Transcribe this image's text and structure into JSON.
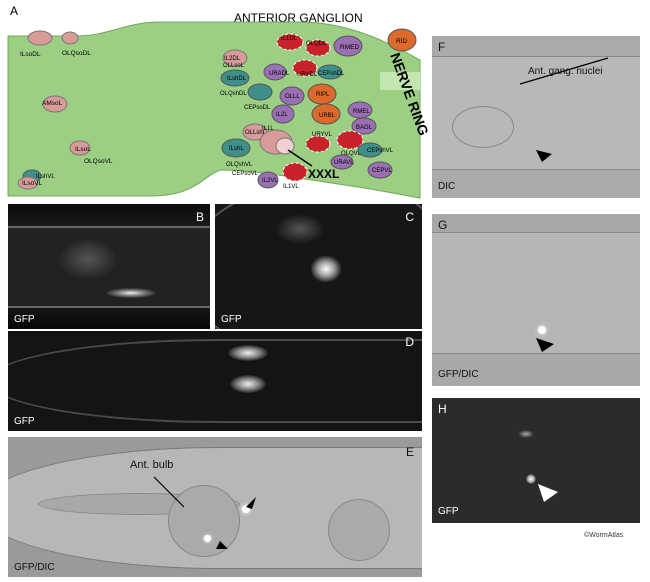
{
  "panels": {
    "a": {
      "letter": "A",
      "title": "ANTERIOR GANGLION",
      "ring_label": "NERVE RING",
      "xxxl_label": "XXXL"
    },
    "b": {
      "letter": "B",
      "caption": "GFP"
    },
    "c": {
      "letter": "C",
      "caption": "GFP"
    },
    "d": {
      "letter": "D",
      "caption": "GFP"
    },
    "e": {
      "letter": "E",
      "caption": "GFP/DIC",
      "annotation": "Ant. bulb"
    },
    "f": {
      "letter": "F",
      "caption": "DIC",
      "annotation": "Ant. gang. nuclei"
    },
    "g": {
      "letter": "G",
      "caption": "GFP/DIC"
    },
    "h": {
      "letter": "H",
      "caption": "GFP"
    }
  },
  "neurons": [
    "ILsoDL",
    "OLQsoDL",
    "AMsoL",
    "ILsoL",
    "OLQsoVL",
    "ILshVL",
    "ILsoVL",
    "IL2DL",
    "OLLsoL",
    "ILshDL",
    "OLQshDL",
    "CEPsoDL",
    "URADL",
    "IL1DL",
    "OLQDL",
    "URYDL",
    "CEPshDL",
    "RMED",
    "RID",
    "OLLL",
    "IL2L",
    "RIPL",
    "URBL",
    "RMEL",
    "BAGL",
    "OLLshL",
    "ILshL",
    "IL1L",
    "URYVL",
    "OLQVL",
    "CEPshVL",
    "OLQshVL",
    "CEPsoVL",
    "IL2VL",
    "URAVL",
    "IL1VL",
    "CEPVL"
  ],
  "credit": "©WormAtlas",
  "colors": {
    "body_green": "#9ccf83",
    "panel_bg": "#000000",
    "socket_pink": "#d99a9a",
    "sheath_teal": "#3f8f8a",
    "purple": "#9b6fb3",
    "orange": "#dd6a2a",
    "red_hatch": "#c8222a"
  }
}
